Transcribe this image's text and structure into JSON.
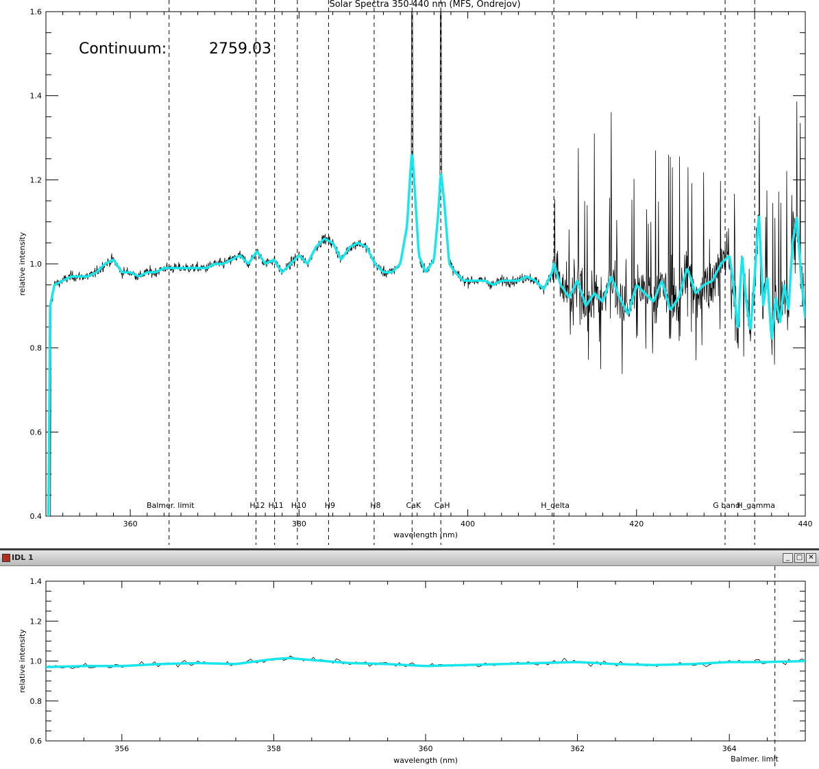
{
  "window": {
    "title": "IDL 1",
    "minimize_label": "_",
    "maximize_label": "□",
    "close_label": "✕"
  },
  "colors": {
    "observed": "#000000",
    "smoothed": "#17e6ec",
    "axes": "#000000"
  },
  "annotation": {
    "label": "Continuum:",
    "value": "2759.03"
  },
  "chart_data": [
    {
      "type": "line",
      "title": "Solar Spectra 350-440 nm (MFS, Ondrejov)",
      "xlabel": "wavelength (nm)",
      "ylabel": "relative intensity",
      "xlim": [
        350,
        440
      ],
      "ylim": [
        0.4,
        1.6
      ],
      "x_ticks": [
        360,
        380,
        400,
        420,
        440
      ],
      "y_ticks": [
        "0.4",
        "0.6",
        "0.8",
        "1.0",
        "1.2",
        "1.4",
        "1.6"
      ],
      "grid": false,
      "spectral_lines": [
        {
          "label": "Balmer. limit",
          "x": 364.6
        },
        {
          "label": "H12",
          "x": 374.9
        },
        {
          "label": "H11",
          "x": 377.1
        },
        {
          "label": "H10",
          "x": 379.8
        },
        {
          "label": "H9",
          "x": 383.5
        },
        {
          "label": "H8",
          "x": 388.9
        },
        {
          "label": "CaK",
          "x": 393.4
        },
        {
          "label": "CaH",
          "x": 396.8
        },
        {
          "label": "H_delta",
          "x": 410.2
        },
        {
          "label": "G band",
          "x": 430.5
        },
        {
          "label": "H_gamma",
          "x": 434.0
        }
      ],
      "series": [
        {
          "color": "#17e6ec",
          "x": [
            350.3,
            350.5,
            351,
            352,
            353,
            354,
            355,
            356,
            357,
            358,
            359,
            360,
            361,
            362,
            363,
            364,
            365,
            366,
            367,
            368,
            369,
            370,
            371,
            372,
            373,
            374,
            375,
            376,
            377,
            378,
            379,
            380,
            381,
            382,
            383,
            384,
            385,
            386,
            387,
            388,
            389,
            390,
            391,
            392,
            392.8,
            393.2,
            393.4,
            393.7,
            394.2,
            395,
            396,
            396.5,
            396.8,
            397.2,
            397.8,
            398.5,
            399.5,
            401,
            402,
            403,
            404,
            405,
            406,
            407,
            408,
            409,
            410,
            410.2,
            411,
            412,
            413,
            414,
            415,
            416,
            417,
            418,
            419,
            420,
            421,
            422,
            423,
            424,
            425,
            426,
            427,
            428,
            429,
            430,
            431,
            431.5,
            432,
            432.5,
            433,
            433.5,
            434,
            434.5,
            435,
            435.5,
            436,
            436.5,
            437,
            437.5,
            438,
            438.5,
            439,
            439.5,
            440
          ],
          "values": [
            0.4,
            0.9,
            0.95,
            0.96,
            0.97,
            0.97,
            0.97,
            0.98,
            1.0,
            1.01,
            0.98,
            0.98,
            0.97,
            0.98,
            0.98,
            0.99,
            0.99,
            0.99,
            0.99,
            0.99,
            0.99,
            1.0,
            1.0,
            1.01,
            1.02,
            1.0,
            1.03,
            1.0,
            1.01,
            0.98,
            1.0,
            1.02,
            1.0,
            1.04,
            1.06,
            1.05,
            1.01,
            1.04,
            1.05,
            1.04,
            1.0,
            0.98,
            0.98,
            1.0,
            1.09,
            1.22,
            1.27,
            1.18,
            1.02,
            0.98,
            1.01,
            1.12,
            1.22,
            1.15,
            1.0,
            0.98,
            0.96,
            0.96,
            0.96,
            0.95,
            0.96,
            0.96,
            0.96,
            0.97,
            0.96,
            0.94,
            0.98,
            1.0,
            0.95,
            0.92,
            0.96,
            0.9,
            0.93,
            0.91,
            0.97,
            0.92,
            0.88,
            0.95,
            0.93,
            0.91,
            0.96,
            0.89,
            0.92,
            0.99,
            0.93,
            0.95,
            0.96,
            1.0,
            1.02,
            0.95,
            0.84,
            1.02,
            0.91,
            0.84,
            0.97,
            1.12,
            0.9,
            0.97,
            0.82,
            0.92,
            0.86,
            0.95,
            0.89,
            1.05,
            1.11,
            0.97,
            0.87
          ]
        }
      ]
    },
    {
      "type": "line",
      "xlabel": "wavelength (nm)",
      "ylabel": "relative intensity",
      "xlim": [
        355,
        365
      ],
      "ylim": [
        0.6,
        1.4
      ],
      "x_ticks": [
        356,
        358,
        360,
        362,
        364
      ],
      "y_ticks": [
        "0.6",
        "0.8",
        "1.0",
        "1.2",
        "1.4"
      ],
      "grid": false,
      "spectral_lines": [
        {
          "label": "Balmer. limit",
          "x": 364.6
        }
      ],
      "series": [
        {
          "color": "#17e6ec",
          "x": [
            355,
            355.5,
            356,
            356.5,
            357,
            357.5,
            358,
            358.2,
            358.5,
            359,
            359.5,
            360,
            360.5,
            361,
            361.5,
            362,
            362.5,
            363,
            363.5,
            364,
            364.5,
            365
          ],
          "values": [
            0.97,
            0.975,
            0.975,
            0.985,
            0.99,
            0.985,
            1.01,
            1.015,
            1.005,
            0.99,
            0.985,
            0.975,
            0.98,
            0.985,
            0.99,
            0.995,
            0.985,
            0.98,
            0.985,
            0.995,
            0.995,
            1.0
          ]
        }
      ]
    }
  ]
}
